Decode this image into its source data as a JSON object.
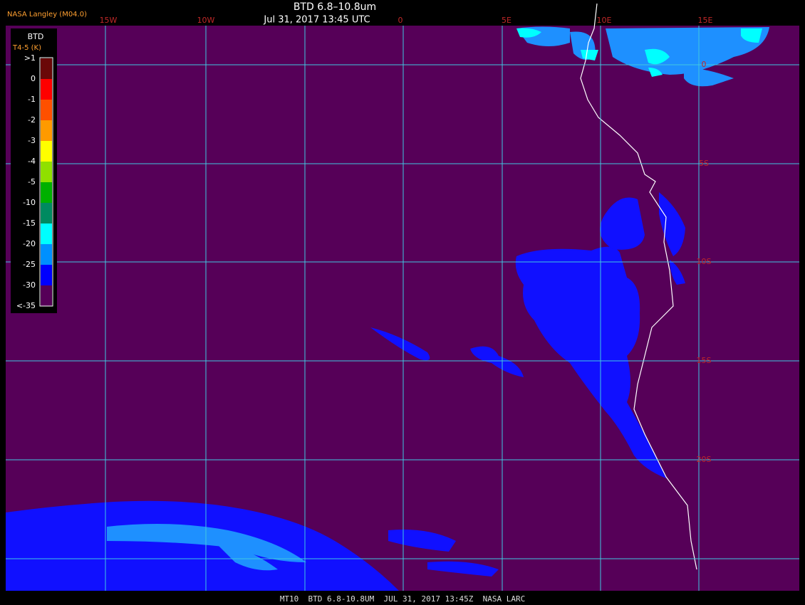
{
  "header": {
    "source": "NASA Langley (M04.0)",
    "title": "BTD 6.8–10.8um",
    "time": "Jul 31, 2017 13:45 UTC"
  },
  "legend": {
    "title": "BTD",
    "unit": "T4-5 (K)",
    "labels": [
      ">1",
      "0",
      "-1",
      "-2",
      "-3",
      "-4",
      "-5",
      "-10",
      "-15",
      "-20",
      "-25",
      "-30",
      "<-35"
    ]
  },
  "longitude_labels": [
    "15W",
    "10W",
    "0",
    "5E",
    "10E",
    "15E"
  ],
  "latitude_labels": [
    "0",
    "5S",
    "10S",
    "15S",
    "20S"
  ],
  "footer": "MT10  BTD 6.8-10.8UM  JUL 31, 2017 13:45Z  NASA LARC"
}
